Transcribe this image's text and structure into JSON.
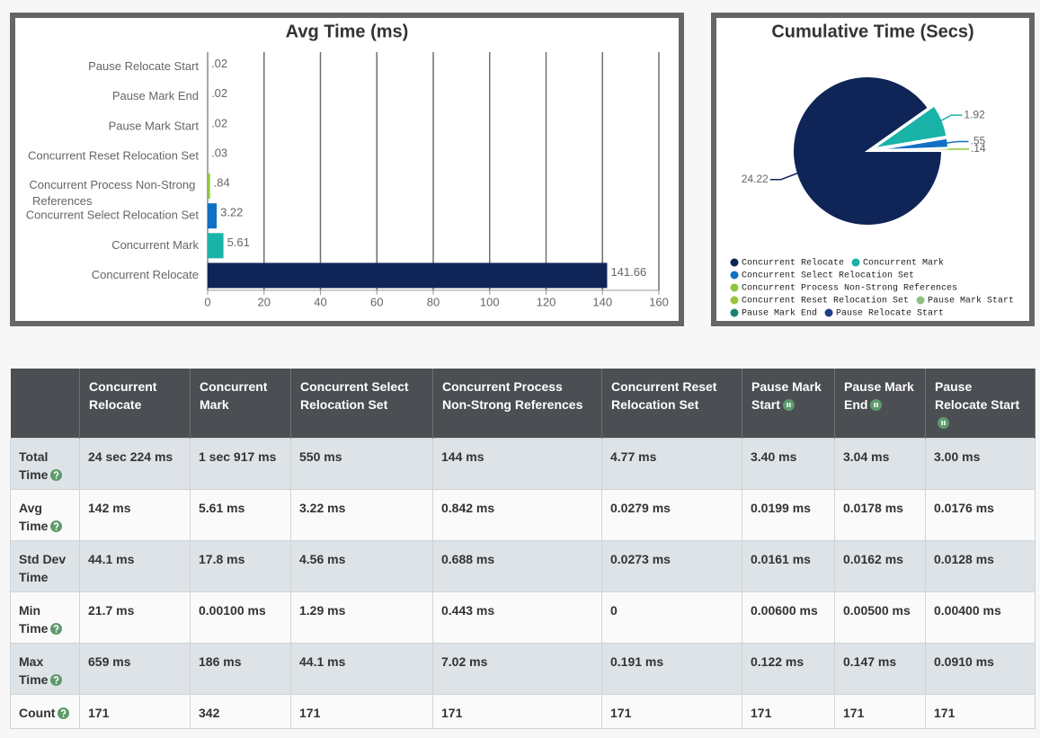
{
  "chart_data": [
    {
      "type": "bar",
      "orientation": "horizontal",
      "title": "Avg Time (ms)",
      "categories": [
        "Concurrent Relocate",
        "Concurrent Mark",
        "Concurrent Select Relocation Set",
        "Concurrent Process Non-Strong References",
        "Concurrent Reset Relocation Set",
        "Pause Mark Start",
        "Pause Mark End",
        "Pause Relocate Start"
      ],
      "values": [
        141.66,
        5.61,
        3.22,
        0.84,
        0.03,
        0.02,
        0.02,
        0.02
      ],
      "value_labels": [
        "141.66",
        "5.61",
        "3.22",
        ".84",
        ".03",
        ".02",
        ".02",
        ".02"
      ],
      "colors": [
        "#0f2557",
        "#19b3a8",
        "#1170c4",
        "#8dc63f",
        "#9bc53d",
        "#8fbf7f",
        "#1a8275",
        "#1e3f86"
      ],
      "xlim": [
        0,
        160
      ],
      "xticks": [
        0,
        20,
        40,
        60,
        80,
        100,
        120,
        140,
        160
      ],
      "grid": true
    },
    {
      "type": "pie",
      "title": "Cumulative Time (Secs)",
      "categories": [
        "Concurrent Relocate",
        "Concurrent Mark",
        "Concurrent Select Relocation Set",
        "Concurrent Process Non-Strong References",
        "Concurrent Reset Relocation Set",
        "Pause Mark Start",
        "Pause Mark End",
        "Pause Relocate Start"
      ],
      "values": [
        24.22,
        1.92,
        0.55,
        0.14,
        0.00477,
        0.0034,
        0.00304,
        0.003
      ],
      "value_labels": [
        "24.22",
        "1.92",
        ".55",
        ".14",
        null,
        null,
        null,
        null
      ],
      "colors": [
        "#0f2557",
        "#19b3a8",
        "#1170c4",
        "#8dc63f",
        "#9bc53d",
        "#8fbf7f",
        "#1a8275",
        "#1e3f86"
      ],
      "legend": "bottom"
    }
  ],
  "table": {
    "columns": [
      "Concurrent Relocate",
      "Concurrent Mark",
      "Concurrent Select Relocation Set",
      "Concurrent Process Non-Strong References",
      "Concurrent Reset Relocation Set",
      "Pause Mark Start",
      "Pause Mark End",
      "Pause Relocate Start"
    ],
    "rows": [
      {
        "label": "Total Time",
        "cells": [
          "24 sec 224 ms",
          "1 sec 917 ms",
          "550 ms",
          "144 ms",
          "4.77 ms",
          "3.40 ms",
          "3.04 ms",
          "3.00 ms"
        ]
      },
      {
        "label": "Avg Time",
        "cells": [
          "142 ms",
          "5.61 ms",
          "3.22 ms",
          "0.842 ms",
          "0.0279 ms",
          "0.0199 ms",
          "0.0178 ms",
          "0.0176 ms"
        ]
      },
      {
        "label": "Std Dev Time",
        "cells": [
          "44.1 ms",
          "17.8 ms",
          "4.56 ms",
          "0.688 ms",
          "0.0273 ms",
          "0.0161 ms",
          "0.0162 ms",
          "0.0128 ms"
        ]
      },
      {
        "label": "Min Time",
        "cells": [
          "21.7 ms",
          "0.00100 ms",
          "1.29 ms",
          "0.443 ms",
          "0",
          "0.00600 ms",
          "0.00500 ms",
          "0.00400 ms"
        ]
      },
      {
        "label": "Max Time",
        "cells": [
          "659 ms",
          "186 ms",
          "44.1 ms",
          "7.02 ms",
          "0.191 ms",
          "0.122 ms",
          "0.147 ms",
          "0.0910 ms"
        ]
      },
      {
        "label": "Count",
        "cells": [
          "171",
          "342",
          "171",
          "171",
          "171",
          "171",
          "171",
          "171"
        ]
      }
    ]
  }
}
